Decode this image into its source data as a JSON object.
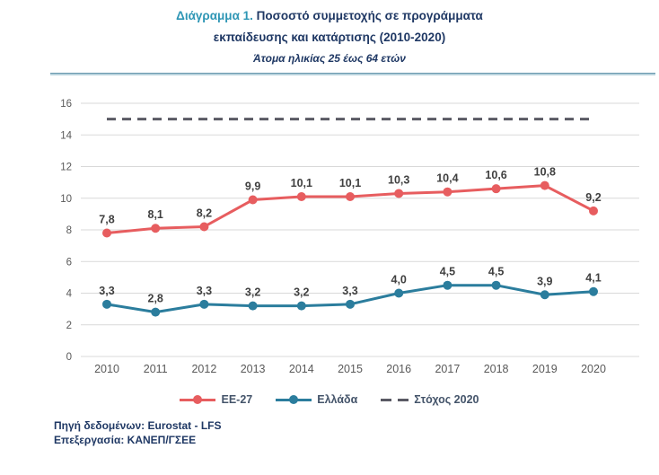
{
  "header": {
    "title_accent": "Διάγραμμα 1.",
    "title_rest": " Ποσοστό συμμετοχής σε προγράμματα",
    "title_line2": "εκπαίδευσης και κατάρτισης (2010-2020)",
    "subtitle": "Άτομα ηλικίας 25 έως 64 ετών"
  },
  "chart_data": {
    "type": "line",
    "title": "Διάγραμμα 1. Ποσοστό συμμετοχής σε προγράμματα εκπαίδευσης και κατάρτισης (2010-2020)",
    "subtitle": "Άτομα ηλικίας 25 έως 64 ετών",
    "categories": [
      "2010",
      "2011",
      "2012",
      "2013",
      "2014",
      "2015",
      "2016",
      "2017",
      "2018",
      "2019",
      "2020"
    ],
    "series": [
      {
        "name": "EE-27",
        "color": "#e75d5f",
        "values": [
          7.8,
          8.1,
          8.2,
          9.9,
          10.1,
          10.1,
          10.3,
          10.4,
          10.6,
          10.8,
          9.2
        ],
        "labels": [
          "7,8",
          "8,1",
          "8,2",
          "9,9",
          "10,1",
          "10,1",
          "10,3",
          "10,4",
          "10,6",
          "10,8",
          "9,2"
        ]
      },
      {
        "name": "Ελλάδα",
        "color": "#2b7d9d",
        "values": [
          3.3,
          2.8,
          3.3,
          3.2,
          3.2,
          3.3,
          4.0,
          4.5,
          4.5,
          3.9,
          4.1
        ],
        "labels": [
          "3,3",
          "2,8",
          "3,3",
          "3,2",
          "3,2",
          "3,3",
          "4,0",
          "4,5",
          "4,5",
          "3,9",
          "4,1"
        ]
      }
    ],
    "target_line": {
      "name": "Στόχος 2020",
      "value": 15,
      "color": "#5a5a64",
      "style": "dashed"
    },
    "ylim": [
      0,
      16
    ],
    "ytick_step": 2,
    "grid": true,
    "legend_position": "bottom"
  },
  "colors": {
    "title_accent": "#2e96b5",
    "title_text": "#1f3864",
    "divider": "#6596ac",
    "grid_line": "#d9d9d9",
    "tick_label": "#595959",
    "data_label": "#404040",
    "legend_text": "#44546a"
  },
  "footer": {
    "source": "Πηγή δεδομένων: Eurostat - LFS",
    "processing": "Επεξεργασία: ΚΑΝΕΠ/ΓΣΕΕ"
  }
}
